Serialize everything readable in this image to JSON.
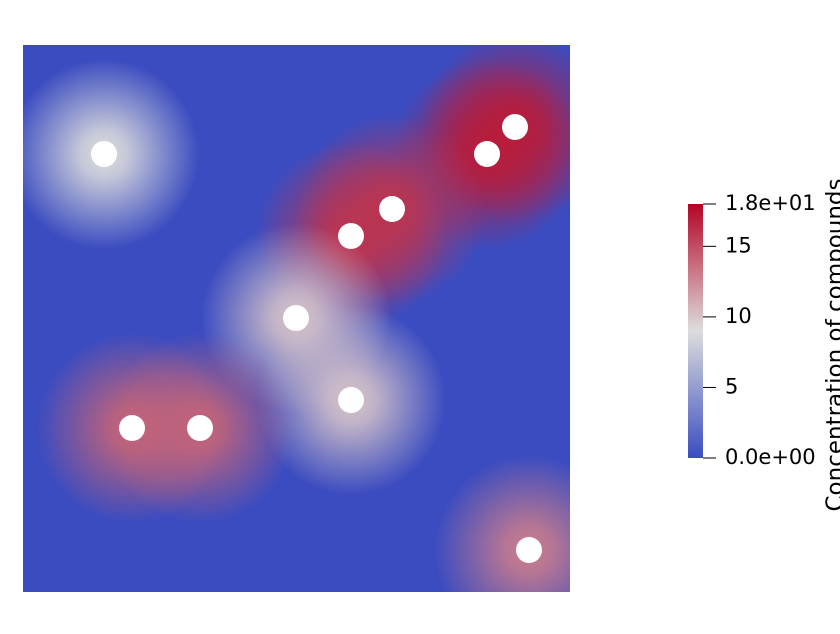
{
  "chart_data": {
    "type": "heatmap",
    "colorbar_title": "Concentration of compounds",
    "clim": [
      0,
      18
    ],
    "cticks": [
      {
        "value": 0,
        "label": "0.0e+00"
      },
      5,
      10,
      15,
      {
        "value": 18,
        "label": "1.8e+01"
      }
    ],
    "colors": [
      "#3b4cc0",
      "#dddddd",
      "#b40426"
    ],
    "values": [
      9,
      17,
      17,
      16,
      16,
      10,
      10,
      14,
      14,
      13
    ]
  }
}
